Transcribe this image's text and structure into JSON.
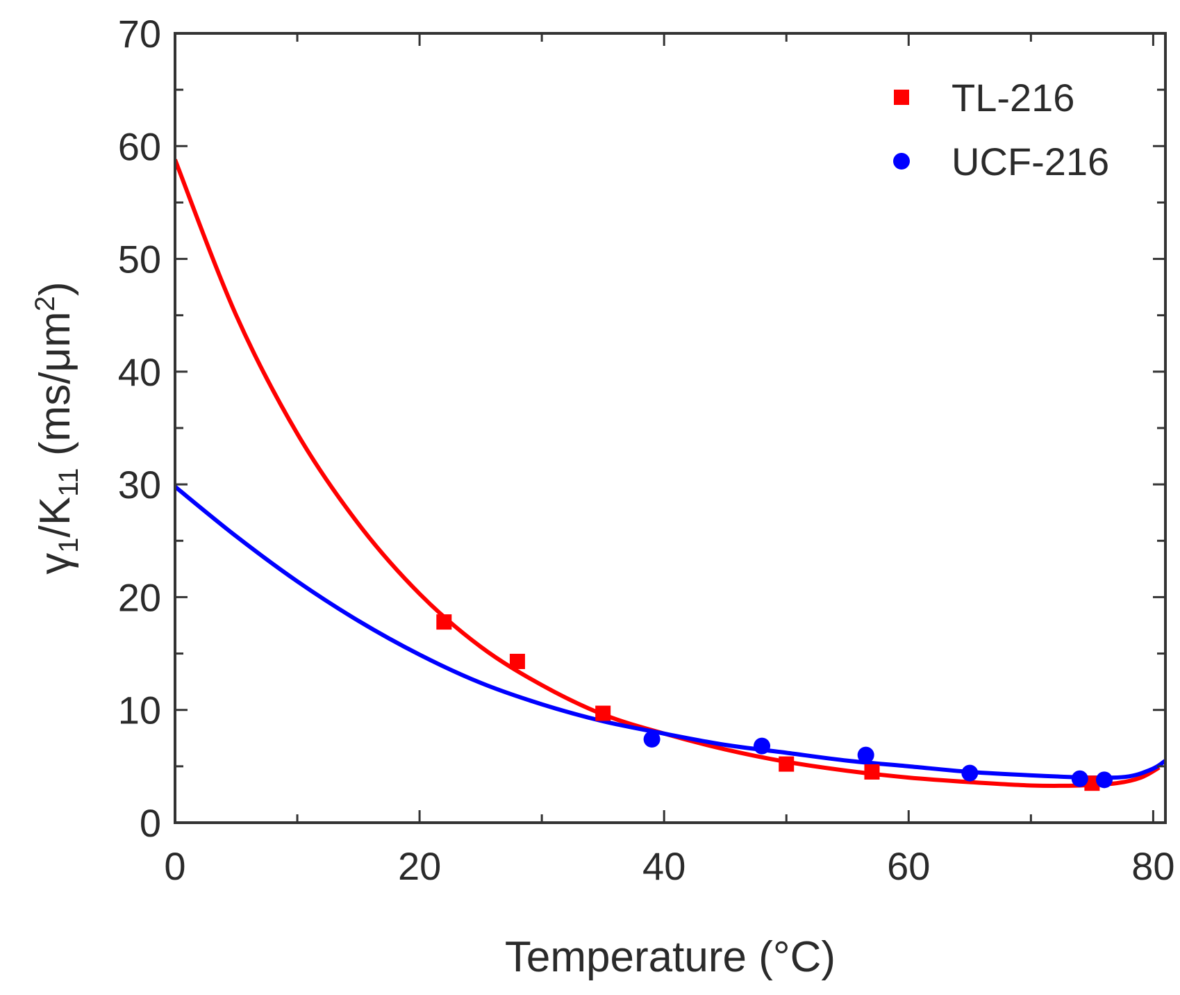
{
  "chart_data": {
    "type": "scatter",
    "title": "",
    "xlabel": "Temperature (°C)",
    "ylabel": {
      "base": "γ",
      "base_sub": "1",
      "sep": "/K",
      "sep_sub": "11",
      "units_open": " (ms/μm",
      "units_sup": "2",
      "units_close": ")"
    },
    "xlim": [
      0,
      81
    ],
    "ylim": [
      0,
      70
    ],
    "xticks": [
      0,
      20,
      40,
      60,
      80
    ],
    "yticks": [
      0,
      10,
      20,
      30,
      40,
      50,
      60,
      70
    ],
    "xtick_labels": [
      "0",
      "20",
      "40",
      "60",
      "80"
    ],
    "ytick_labels": [
      "0",
      "10",
      "20",
      "30",
      "40",
      "50",
      "60",
      "70"
    ],
    "grid": false,
    "legend_position": "top-right",
    "series": [
      {
        "name": "TL-216",
        "color": "#ff0000",
        "marker": "square",
        "points": [
          {
            "x": 22,
            "y": 17.8
          },
          {
            "x": 28,
            "y": 14.3
          },
          {
            "x": 35,
            "y": 9.7
          },
          {
            "x": 50,
            "y": 5.2
          },
          {
            "x": 57,
            "y": 4.5
          },
          {
            "x": 75,
            "y": 3.5
          }
        ],
        "fit": [
          {
            "x": 0,
            "y": 58.8
          },
          {
            "x": 5,
            "y": 45
          },
          {
            "x": 10,
            "y": 34.5
          },
          {
            "x": 15,
            "y": 26.5
          },
          {
            "x": 20,
            "y": 20.3
          },
          {
            "x": 25,
            "y": 15.6
          },
          {
            "x": 30,
            "y": 12.2
          },
          {
            "x": 35,
            "y": 9.6
          },
          {
            "x": 40,
            "y": 7.9
          },
          {
            "x": 45,
            "y": 6.5
          },
          {
            "x": 50,
            "y": 5.4
          },
          {
            "x": 55,
            "y": 4.6
          },
          {
            "x": 60,
            "y": 4.0
          },
          {
            "x": 65,
            "y": 3.6
          },
          {
            "x": 70,
            "y": 3.3
          },
          {
            "x": 74,
            "y": 3.3
          },
          {
            "x": 77,
            "y": 3.5
          },
          {
            "x": 79,
            "y": 4.0
          },
          {
            "x": 80.5,
            "y": 4.9
          }
        ]
      },
      {
        "name": "UCF-216",
        "color": "#0000ff",
        "marker": "circle",
        "points": [
          {
            "x": 39,
            "y": 7.4
          },
          {
            "x": 48,
            "y": 6.8
          },
          {
            "x": 56.5,
            "y": 6.0
          },
          {
            "x": 65,
            "y": 4.4
          },
          {
            "x": 74,
            "y": 3.9
          },
          {
            "x": 76,
            "y": 3.8
          }
        ],
        "fit": [
          {
            "x": 0,
            "y": 29.8
          },
          {
            "x": 5,
            "y": 25.4
          },
          {
            "x": 10,
            "y": 21.4
          },
          {
            "x": 15,
            "y": 17.9
          },
          {
            "x": 20,
            "y": 14.9
          },
          {
            "x": 25,
            "y": 12.4
          },
          {
            "x": 30,
            "y": 10.5
          },
          {
            "x": 35,
            "y": 9.0
          },
          {
            "x": 40,
            "y": 7.9
          },
          {
            "x": 45,
            "y": 6.9
          },
          {
            "x": 50,
            "y": 6.2
          },
          {
            "x": 55,
            "y": 5.5
          },
          {
            "x": 60,
            "y": 5.0
          },
          {
            "x": 65,
            "y": 4.5
          },
          {
            "x": 70,
            "y": 4.2
          },
          {
            "x": 75,
            "y": 4.0
          },
          {
            "x": 78,
            "y": 4.1
          },
          {
            "x": 80,
            "y": 4.8
          },
          {
            "x": 81,
            "y": 5.5
          }
        ]
      }
    ]
  }
}
